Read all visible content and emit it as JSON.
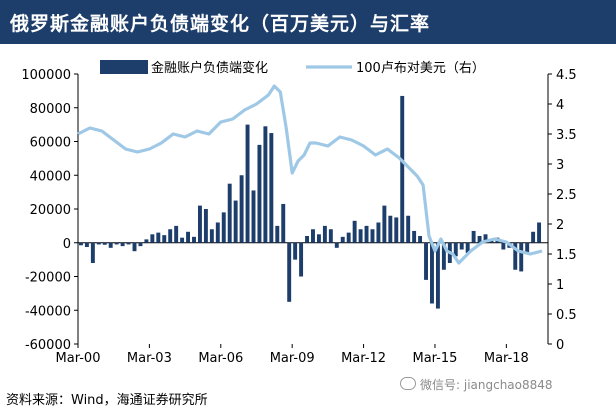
{
  "title": "俄罗斯金融账户负债端变化（百万美元）与汇率",
  "source_note": "资料来源：Wind，海通证券研究所",
  "watermark": "微信号: jiangchao8848",
  "colors": {
    "bars": "#1d3d6b",
    "line": "#9ec8e6",
    "title_bg": "#1d3d6b"
  },
  "chart_data": {
    "type": "bar",
    "title": "俄罗斯金融账户负债端变化（百万美元）与汇率",
    "legend_placement": "top",
    "grid": false,
    "x_ticks": [
      "Mar-00",
      "Mar-03",
      "Mar-06",
      "Mar-09",
      "Mar-12",
      "Mar-15",
      "Mar-18"
    ],
    "x_range": [
      2000.0,
      2019.75
    ],
    "y_left": {
      "ticks": [
        "100000",
        "80000",
        "60000",
        "40000",
        "20000",
        "0",
        "-20000",
        "-40000",
        "-60000"
      ],
      "range": [
        -60000,
        100000
      ]
    },
    "y_right": {
      "ticks": [
        "4.5",
        "4",
        "3.5",
        "3",
        "2.5",
        "2",
        "1.5",
        "1",
        "0.5",
        "0"
      ],
      "range": [
        0,
        4.5
      ]
    },
    "series": [
      {
        "name": "金融账户负债端变化",
        "axis": "left",
        "type": "bar",
        "x": [
          2000.0,
          2000.25,
          2000.5,
          2000.75,
          2001.0,
          2001.25,
          2001.5,
          2001.75,
          2002.0,
          2002.25,
          2002.5,
          2002.75,
          2003.0,
          2003.25,
          2003.5,
          2003.75,
          2004.0,
          2004.25,
          2004.5,
          2004.75,
          2005.0,
          2005.25,
          2005.5,
          2005.75,
          2006.0,
          2006.25,
          2006.5,
          2006.75,
          2007.0,
          2007.25,
          2007.5,
          2007.75,
          2008.0,
          2008.25,
          2008.5,
          2008.75,
          2009.0,
          2009.25,
          2009.5,
          2009.75,
          2010.0,
          2010.25,
          2010.5,
          2010.75,
          2011.0,
          2011.25,
          2011.5,
          2011.75,
          2012.0,
          2012.25,
          2012.5,
          2012.75,
          2013.0,
          2013.25,
          2013.5,
          2013.75,
          2014.0,
          2014.25,
          2014.5,
          2014.75,
          2015.0,
          2015.25,
          2015.5,
          2015.75,
          2016.0,
          2016.25,
          2016.5,
          2016.75,
          2017.0,
          2017.25,
          2017.5,
          2017.75,
          2018.0,
          2018.25,
          2018.5,
          2018.75,
          2019.0,
          2019.25
        ],
        "values": [
          -1500,
          -2500,
          -12000,
          -1000,
          -1200,
          -3000,
          -1000,
          -2000,
          -1000,
          -5000,
          -2000,
          2000,
          5000,
          6000,
          4500,
          8000,
          10000,
          3000,
          6500,
          3500,
          22000,
          20000,
          8000,
          12000,
          18000,
          35000,
          25000,
          40000,
          70000,
          31000,
          58000,
          69000,
          65000,
          10000,
          23000,
          -35000,
          -10000,
          -20000,
          4000,
          8000,
          5000,
          10000,
          8000,
          -3000,
          3500,
          6000,
          13000,
          8000,
          10000,
          8000,
          12000,
          22000,
          16000,
          15000,
          87000,
          16000,
          7000,
          4000,
          -22000,
          -36000,
          -39000,
          -16000,
          -12000,
          -8000,
          -4000,
          -6000,
          7000,
          4000,
          5000,
          2500,
          3000,
          -4000,
          -3000,
          -16000,
          -17000,
          -6000,
          6500,
          12000
        ]
      },
      {
        "name": "100卢布对美元（右）",
        "axis": "right",
        "type": "line",
        "x": [
          2000.0,
          2000.5,
          2001.0,
          2001.5,
          2002.0,
          2002.5,
          2003.0,
          2003.5,
          2004.0,
          2004.5,
          2005.0,
          2005.5,
          2006.0,
          2006.5,
          2007.0,
          2007.5,
          2008.0,
          2008.25,
          2008.5,
          2008.75,
          2009.0,
          2009.25,
          2009.5,
          2009.75,
          2010.0,
          2010.5,
          2011.0,
          2011.5,
          2012.0,
          2012.5,
          2013.0,
          2013.5,
          2014.0,
          2014.25,
          2014.5,
          2014.75,
          2015.0,
          2015.25,
          2015.5,
          2015.75,
          2016.0,
          2016.5,
          2017.0,
          2017.5,
          2018.0,
          2018.5,
          2019.0,
          2019.5
        ],
        "values": [
          3.5,
          3.6,
          3.55,
          3.4,
          3.25,
          3.2,
          3.25,
          3.35,
          3.5,
          3.45,
          3.55,
          3.5,
          3.7,
          3.75,
          3.9,
          4.0,
          4.15,
          4.3,
          4.2,
          3.6,
          2.85,
          3.05,
          3.15,
          3.35,
          3.35,
          3.3,
          3.45,
          3.4,
          3.3,
          3.15,
          3.25,
          3.1,
          2.9,
          2.8,
          2.65,
          1.8,
          1.55,
          1.75,
          1.55,
          1.5,
          1.35,
          1.55,
          1.7,
          1.75,
          1.7,
          1.55,
          1.5,
          1.55
        ]
      }
    ]
  }
}
